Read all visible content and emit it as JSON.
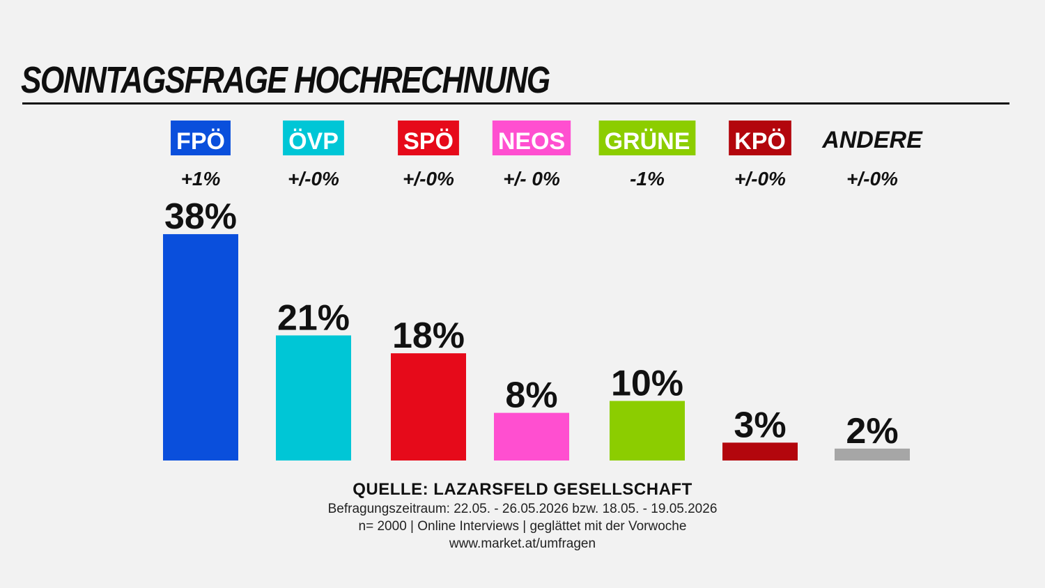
{
  "header": {
    "title": "SONNTAGSFRAGE HOCHRECHNUNG"
  },
  "chart_data": {
    "type": "bar",
    "title": "SONNTAGSFRAGE HOCHRECHNUNG",
    "xlabel": "",
    "ylabel": "",
    "ylim": [
      0,
      40
    ],
    "grid": false,
    "categories": [
      "FPÖ",
      "ÖVP",
      "SPÖ",
      "NEOS",
      "GRÜNE",
      "KPÖ",
      "ANDERE"
    ],
    "values": [
      38,
      21,
      18,
      8,
      10,
      3,
      2
    ],
    "value_labels": [
      "38%",
      "21%",
      "18%",
      "8%",
      "10%",
      "3%",
      "2%"
    ],
    "changes": [
      "+1%",
      "+/-0%",
      "+/-0%",
      "+/- 0%",
      "-1%",
      "+/-0%",
      "+/-0%"
    ],
    "colors": [
      "#0a4fdc",
      "#00c6d6",
      "#e60a1a",
      "#ff4fd0",
      "#8ccd00",
      "#b3060d",
      "#a6a6a6"
    ],
    "label_text_colors": [
      "#ffffff",
      "#ffffff",
      "#ffffff",
      "#ffffff",
      "#ffffff",
      "#ffffff",
      "#111111"
    ],
    "label_boxed": [
      true,
      true,
      true,
      true,
      true,
      true,
      false
    ]
  },
  "source": {
    "title": "QUELLE: LAZARSFELD GESELLSCHAFT",
    "lines": [
      "Befragungszeitraum: 22.05. - 26.05.2026 bzw. 18.05. - 19.05.2026",
      "n= 2000 | Online Interviews | geglättet mit der Vorwoche",
      "www.market.at/umfragen"
    ]
  }
}
